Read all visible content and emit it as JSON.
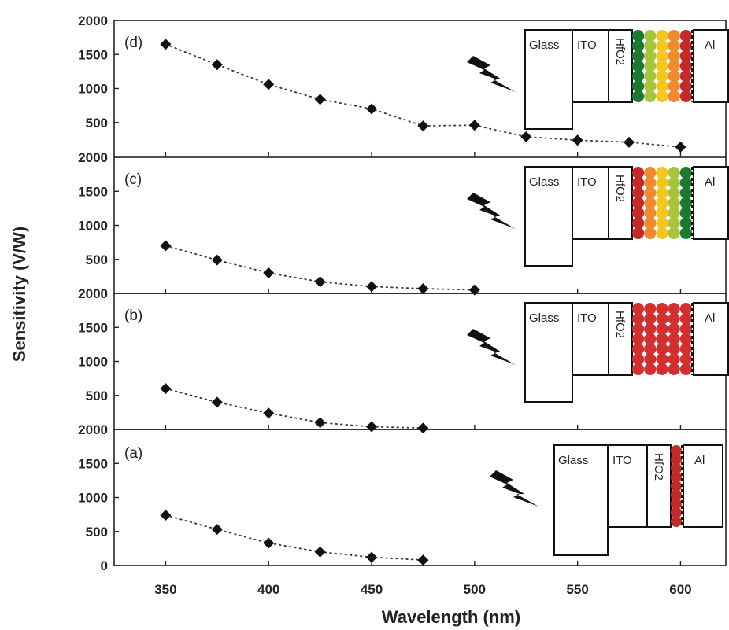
{
  "chart_data": {
    "type": "scatter",
    "xlabel": "Wavelength (nm)",
    "ylabel": "Sensitivity (V/W)",
    "xlim": [
      325,
      622
    ],
    "ylim": [
      0,
      2000
    ],
    "x_ticks": [
      350,
      400,
      450,
      500,
      550,
      600
    ],
    "y_ticks": [
      0,
      500,
      1000,
      1500,
      2000
    ],
    "panels": [
      {
        "label": "(a)",
        "x": [
          350,
          375,
          400,
          425,
          450,
          475
        ],
        "y": [
          740,
          530,
          330,
          200,
          120,
          80
        ],
        "device": {
          "layers": [
            "Glass",
            "ITO",
            "HfO2",
            "Al"
          ],
          "qd_colors": [
            "#c62828"
          ],
          "qd_columns": 1
        }
      },
      {
        "label": "(b)",
        "x": [
          350,
          375,
          400,
          425,
          450,
          475
        ],
        "y": [
          600,
          400,
          240,
          100,
          40,
          20
        ],
        "device": {
          "layers": [
            "Glass",
            "ITO",
            "HfO2",
            "Al"
          ],
          "qd_colors": [
            "#d32f2f",
            "#d32f2f",
            "#d32f2f",
            "#d32f2f",
            "#d32f2f"
          ],
          "qd_columns": 5
        }
      },
      {
        "label": "(c)",
        "x": [
          350,
          375,
          400,
          425,
          450,
          475,
          500
        ],
        "y": [
          700,
          490,
          300,
          170,
          100,
          70,
          50
        ],
        "device": {
          "layers": [
            "Glass",
            "ITO",
            "HfO2",
            "Al"
          ],
          "qd_colors": [
            "#c62828",
            "#f08a2c",
            "#f4c61f",
            "#a6c43c",
            "#1b7a2f"
          ],
          "qd_columns": 5
        }
      },
      {
        "label": "(d)",
        "x": [
          350,
          375,
          400,
          425,
          450,
          475,
          500,
          525,
          550,
          575,
          600
        ],
        "y": [
          1650,
          1350,
          1060,
          840,
          700,
          450,
          460,
          290,
          240,
          210,
          140
        ],
        "device": {
          "layers": [
            "Glass",
            "ITO",
            "HfO2",
            "Al"
          ],
          "qd_colors": [
            "#1b7a2f",
            "#a6c43c",
            "#f4c61f",
            "#f08a2c",
            "#c62828"
          ],
          "qd_columns": 5
        }
      }
    ]
  }
}
